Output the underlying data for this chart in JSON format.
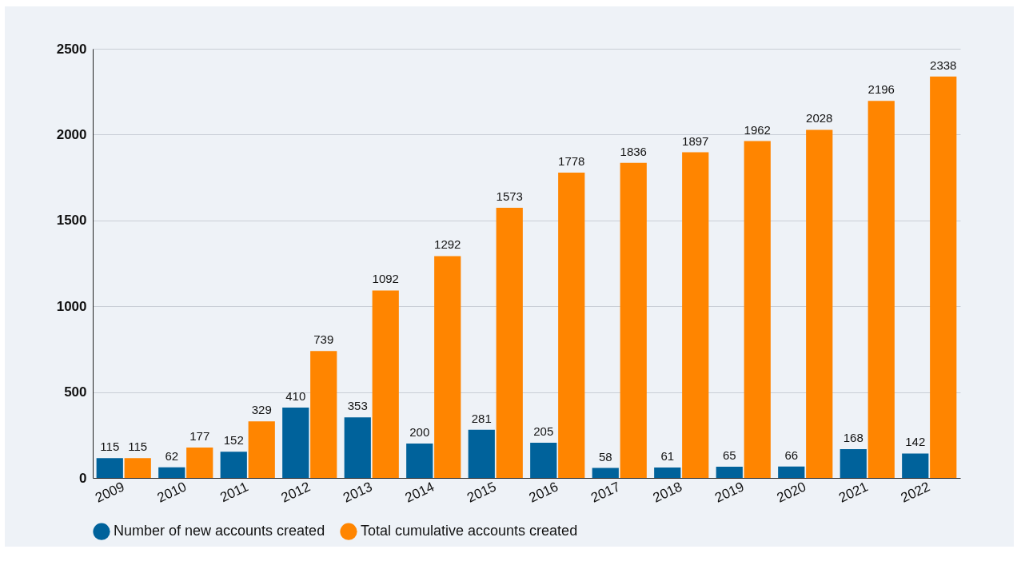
{
  "chart_data": {
    "type": "bar",
    "categories": [
      "2009",
      "2010",
      "2011",
      "2012",
      "2013",
      "2014",
      "2015",
      "2016",
      "2017",
      "2018",
      "2019",
      "2020",
      "2021",
      "2022"
    ],
    "series": [
      {
        "name": "Number of new accounts created",
        "color": "#00629b",
        "values": [
          115,
          62,
          152,
          410,
          353,
          200,
          281,
          205,
          58,
          61,
          65,
          66,
          168,
          142
        ]
      },
      {
        "name": "Total cumulative accounts created",
        "color": "#ff8500",
        "values": [
          115,
          177,
          329,
          739,
          1092,
          1292,
          1573,
          1778,
          1836,
          1897,
          1962,
          2028,
          2196,
          2338
        ]
      }
    ],
    "ylim": [
      0,
      2500
    ],
    "yticks": [
      0,
      500,
      1000,
      1500,
      2000,
      2500
    ],
    "grid": "y",
    "legend": "bottom",
    "data_labels": true
  }
}
